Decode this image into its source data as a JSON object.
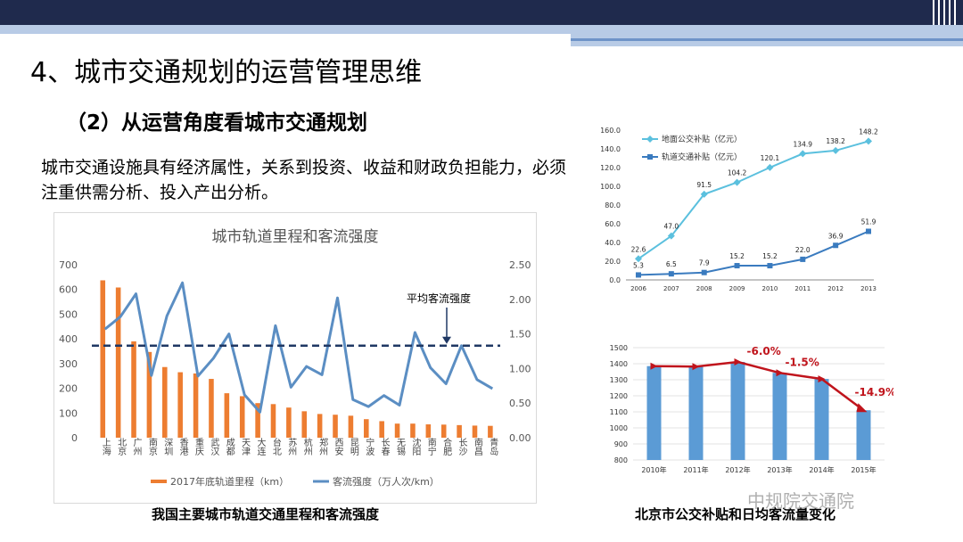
{
  "title": "4、城市交通规划的运营管理思维",
  "subtitle": "（2）从运营角度看城市交通规划",
  "body": "城市交通设施具有经济属性，关系到投资、收益和财政负担能力，必须注重供需分析、投入产出分析。",
  "captions": {
    "left": "我国主要城市轨道交通里程和客流强度",
    "right": "北京市公交补贴和日均客流量变化"
  },
  "watermark": "中规院交通院",
  "chart_data": [
    {
      "type": "bar",
      "title": "城市轨道里程和客流强度",
      "categories": [
        "上海",
        "北京",
        "广州",
        "南京",
        "深圳",
        "香港",
        "重庆",
        "武汉",
        "成都",
        "天津",
        "大连",
        "台北",
        "苏州",
        "杭州",
        "郑州",
        "西安",
        "昆明",
        "宁波",
        "长春",
        "无锡",
        "沈阳",
        "南宁",
        "合肥",
        "长沙",
        "南昌",
        "青岛"
      ],
      "series": [
        {
          "name": "2017年底轨道里程（km）",
          "type": "bar",
          "axis": "left",
          "values": [
            637,
            608,
            390,
            347,
            286,
            265,
            260,
            238,
            180,
            168,
            140,
            136,
            122,
            107,
            96,
            93,
            89,
            75,
            67,
            57,
            57,
            54,
            53,
            51,
            49,
            48
          ]
        },
        {
          "name": "客流强度（万人次/km）",
          "type": "line",
          "axis": "right",
          "values": [
            1.57,
            1.75,
            2.08,
            0.9,
            1.76,
            2.24,
            0.89,
            1.15,
            1.5,
            0.62,
            0.37,
            1.62,
            0.73,
            1.03,
            0.91,
            2.02,
            0.55,
            0.45,
            0.61,
            0.47,
            1.52,
            1.01,
            0.78,
            1.33,
            0.84,
            0.71
          ]
        }
      ],
      "annotation": {
        "label": "平均客流强度",
        "value": 1.33
      },
      "ylim_left": [
        0,
        700
      ],
      "ylim_right": [
        0,
        2.5
      ],
      "yticks_left": [
        "0",
        "100",
        "200",
        "300",
        "400",
        "500",
        "600",
        "700"
      ],
      "yticks_right": [
        "0.00",
        "0.50",
        "1.00",
        "1.50",
        "2.00",
        "2.50"
      ],
      "legend": "bottom"
    },
    {
      "type": "line",
      "x": [
        "2006",
        "2007",
        "2008",
        "2009",
        "2010",
        "2011",
        "2012",
        "2013"
      ],
      "series": [
        {
          "name": "地面公交补贴（亿元）",
          "values": [
            22.6,
            47.0,
            91.5,
            104.2,
            120.1,
            134.9,
            138.2,
            148.2
          ],
          "color": "#5bc0de"
        },
        {
          "name": "轨道交通补贴（亿元）",
          "values": [
            5.3,
            6.5,
            7.9,
            15.2,
            15.2,
            22.0,
            36.9,
            51.9
          ],
          "color": "#3a7bbf"
        }
      ],
      "value_labels": {
        "s0": [
          "22.6",
          "47.0",
          "91.5",
          "104.2",
          "120.1",
          "134.9",
          "138.2",
          "148.2"
        ],
        "s1": [
          "5.3",
          "6.5",
          "7.9",
          "15.2",
          "15.2",
          "22.0",
          "36.9",
          "51.9"
        ]
      },
      "ylim": [
        0,
        160
      ],
      "yticks": [
        "0.0",
        "20.0",
        "40.0",
        "60.0",
        "80.0",
        "100.0",
        "120.0",
        "140.0",
        "160.0"
      ],
      "legend": "top-left"
    },
    {
      "type": "bar",
      "categories": [
        "2010年",
        "2011年",
        "2012年",
        "2013年",
        "2014年",
        "2015年"
      ],
      "values": [
        1385,
        1382,
        1411,
        1343,
        1305,
        1110
      ],
      "ylim": [
        800,
        1500
      ],
      "yticks": [
        "800",
        "900",
        "1000",
        "1100",
        "1200",
        "1300",
        "1400",
        "1500"
      ],
      "annotations": [
        "-6.0%",
        "-1.5%",
        "-14.9%"
      ],
      "colors": {
        "bar": "#5b9bd5",
        "trend": "#c0141c",
        "annot": "#c0141c"
      }
    }
  ]
}
